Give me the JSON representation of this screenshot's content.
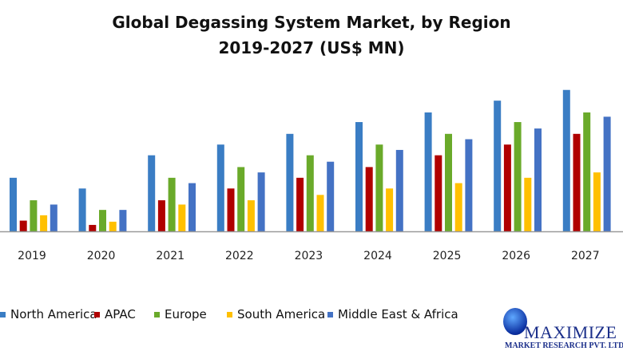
{
  "chart_data": {
    "type": "bar",
    "title": "Global Degassing System Market, by Region",
    "subtitle": "2019-2027 (US$ MN)",
    "xlabel": "",
    "ylabel": "",
    "categories": [
      "2019",
      "2020",
      "2021",
      "2022",
      "2023",
      "2024",
      "2025",
      "2026",
      "2027"
    ],
    "series": [
      {
        "name": "North America",
        "color": "#3a7dc4",
        "values": [
          5.0,
          4.0,
          7.1,
          8.1,
          9.1,
          10.2,
          11.1,
          12.2,
          13.2
        ]
      },
      {
        "name": "APAC",
        "color": "#b00000",
        "values": [
          1.0,
          0.6,
          2.9,
          4.0,
          5.0,
          6.0,
          7.1,
          8.1,
          9.1
        ]
      },
      {
        "name": "Europe",
        "color": "#6aaa2a",
        "values": [
          2.9,
          2.0,
          5.0,
          6.0,
          7.1,
          8.1,
          9.1,
          10.2,
          11.1
        ]
      },
      {
        "name": "South America",
        "color": "#ffc000",
        "values": [
          1.5,
          0.9,
          2.5,
          2.9,
          3.4,
          4.0,
          4.5,
          5.0,
          5.5
        ]
      },
      {
        "name": "Middle East & Africa",
        "color": "#4472c4",
        "values": [
          2.5,
          2.0,
          4.5,
          5.5,
          6.5,
          7.6,
          8.6,
          9.6,
          10.7
        ]
      }
    ],
    "ylim": [
      0,
      14
    ],
    "grid": false,
    "legend_position": "bottom",
    "y_axis_shown": false
  },
  "logo": {
    "name": "MAXIMIZE",
    "tagline": "MARKET RESEARCH PVT. LTD."
  }
}
